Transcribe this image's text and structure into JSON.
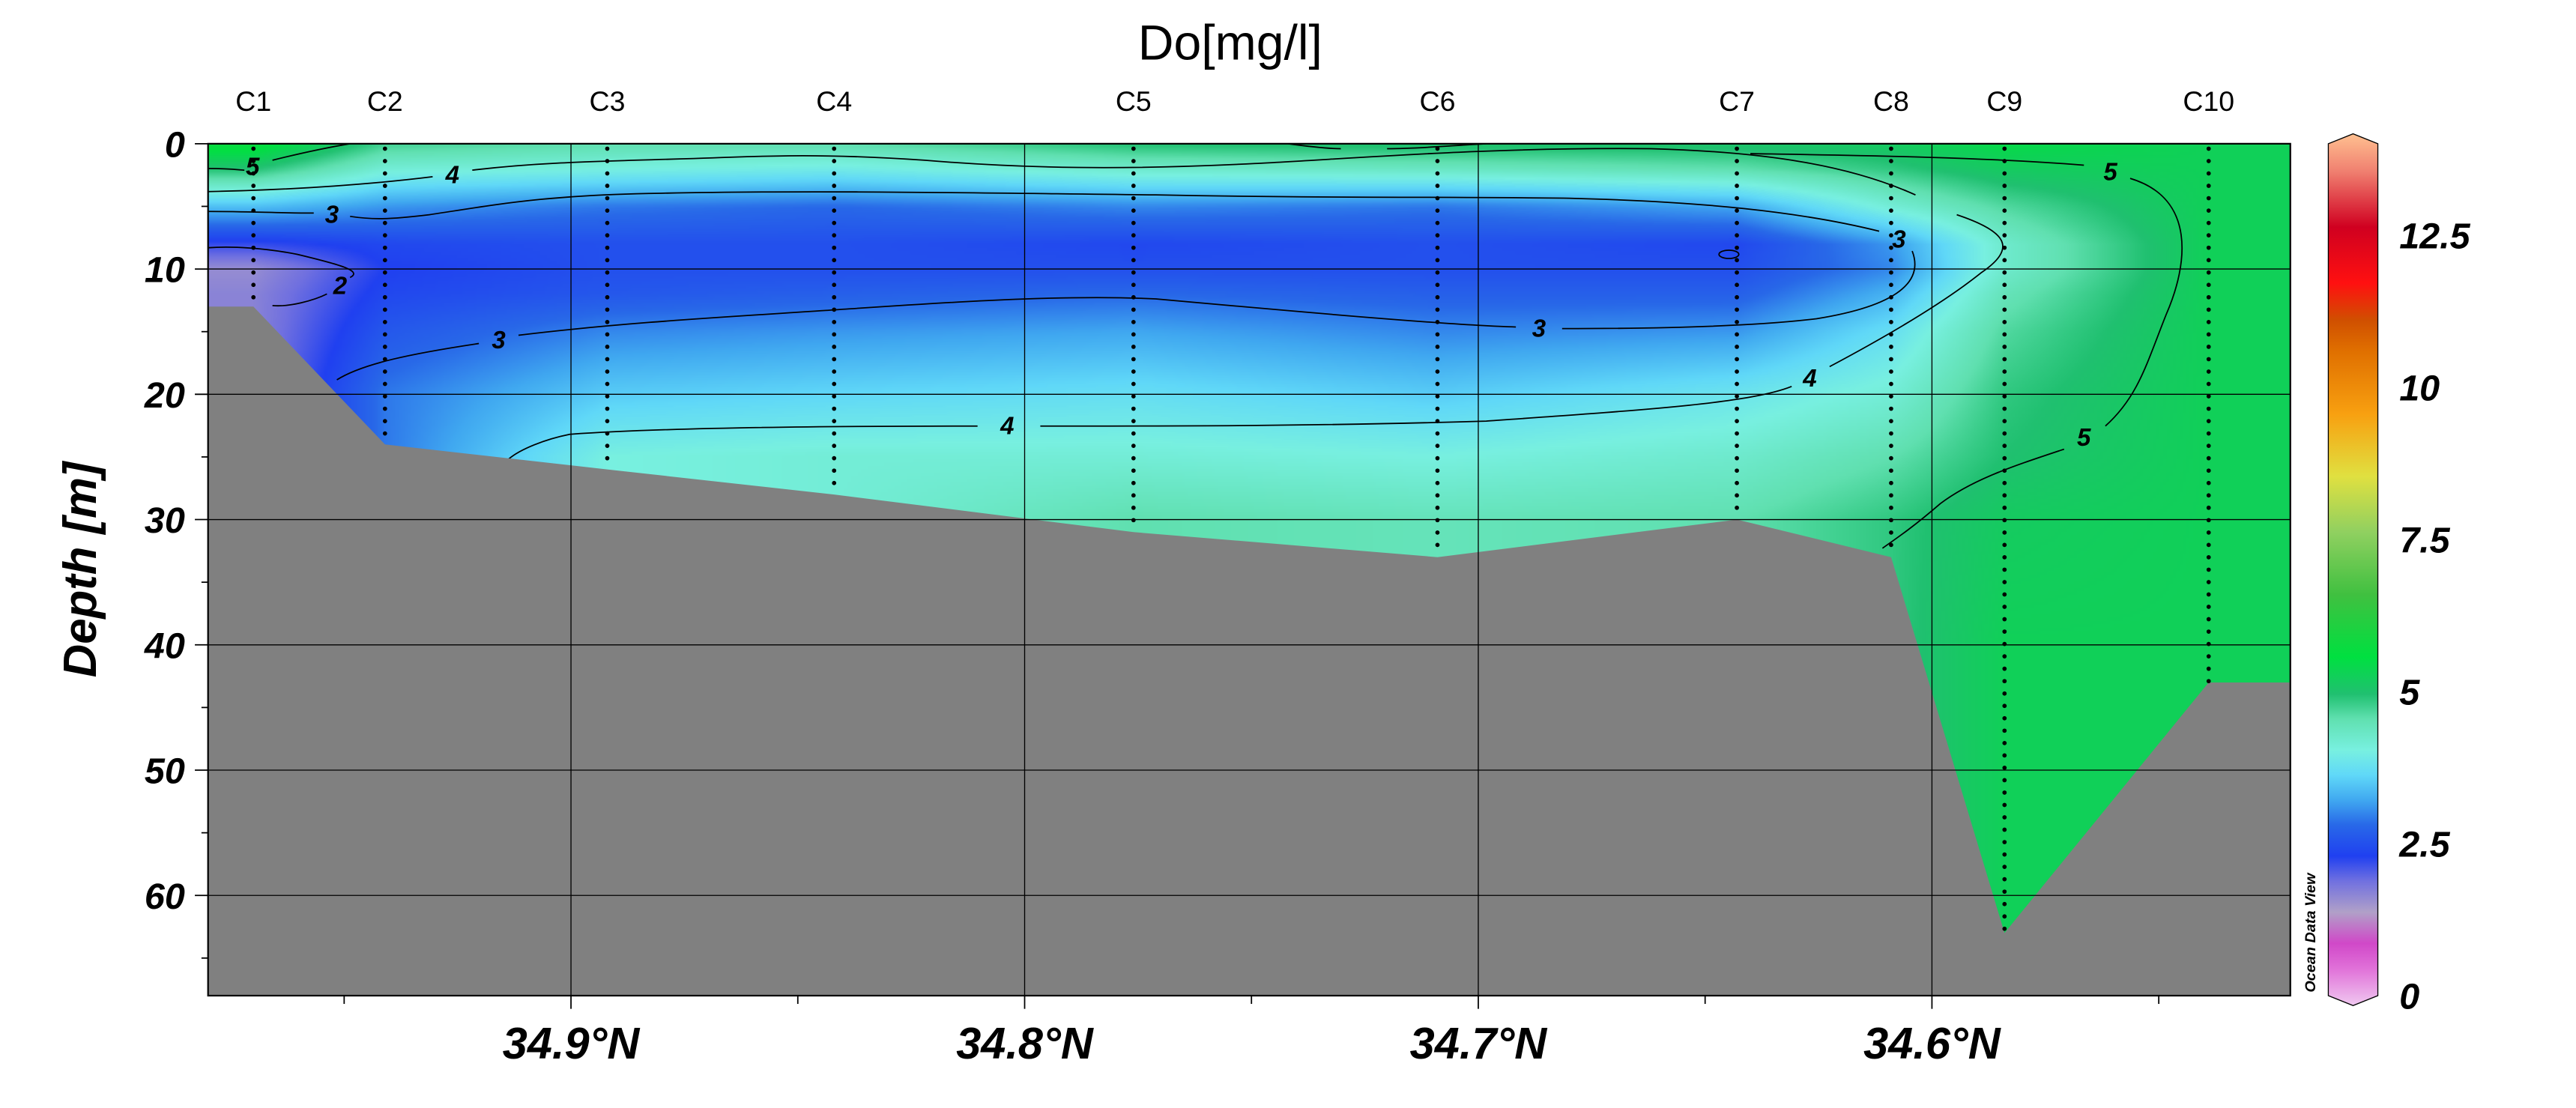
{
  "chart_data": {
    "type": "heatmap",
    "title": "Do[mg/l]",
    "xlabel": "",
    "ylabel": "Depth [m]",
    "xlim": [
      34.98,
      34.521
    ],
    "ylim": [
      0,
      68
    ],
    "x_ticks": [
      34.9,
      34.8,
      34.7,
      34.6
    ],
    "x_tick_labels": [
      "34.9°N",
      "34.8°N",
      "34.7°N",
      "34.6°N"
    ],
    "y_ticks": [
      0,
      10,
      20,
      30,
      40,
      50,
      60
    ],
    "y_tick_labels": [
      "0",
      "10",
      "20",
      "30",
      "40",
      "50",
      "60"
    ],
    "grid": true,
    "depths": [
      0,
      2,
      5,
      8,
      10,
      12,
      15,
      20,
      25,
      30,
      40,
      50,
      60
    ],
    "stations": [
      {
        "name": "C1",
        "lat": 34.97,
        "bottom": 13,
        "values": [
          5.8,
          5.0,
          3.5,
          2.3,
          1.7,
          1.8,
          null,
          null,
          null,
          null,
          null,
          null,
          null
        ]
      },
      {
        "name": "C2",
        "lat": 34.941,
        "bottom": 24,
        "values": [
          4.8,
          4.2,
          3.2,
          2.5,
          2.4,
          2.5,
          2.7,
          3.0,
          null,
          null,
          null,
          null,
          null
        ]
      },
      {
        "name": "C3",
        "lat": 34.892,
        "bottom": 26,
        "values": [
          4.6,
          4.1,
          3.0,
          2.6,
          2.6,
          2.7,
          3.1,
          3.6,
          4.1,
          null,
          null,
          null,
          null
        ]
      },
      {
        "name": "C4",
        "lat": 34.842,
        "bottom": 28,
        "values": [
          4.6,
          4.0,
          2.9,
          2.6,
          2.6,
          2.8,
          3.2,
          3.7,
          4.2,
          null,
          null,
          null,
          null
        ]
      },
      {
        "name": "C5",
        "lat": 34.776,
        "bottom": 31,
        "values": [
          5.0,
          4.3,
          3.1,
          2.5,
          2.6,
          2.9,
          3.3,
          3.8,
          4.2,
          4.6,
          null,
          null,
          null
        ]
      },
      {
        "name": "C6",
        "lat": 34.709,
        "bottom": 33,
        "values": [
          5.1,
          4.4,
          3.0,
          2.6,
          2.6,
          2.8,
          3.1,
          3.6,
          4.1,
          4.5,
          null,
          null,
          null
        ]
      },
      {
        "name": "C7",
        "lat": 34.643,
        "bottom": 30,
        "values": [
          5.1,
          4.6,
          3.3,
          2.5,
          2.6,
          2.8,
          3.2,
          3.9,
          4.3,
          4.6,
          null,
          null,
          null
        ]
      },
      {
        "name": "C8",
        "lat": 34.609,
        "bottom": 33,
        "values": [
          5.2,
          4.9,
          4.2,
          3.2,
          3.1,
          3.4,
          3.8,
          4.2,
          4.6,
          4.9,
          null,
          null,
          null
        ]
      },
      {
        "name": "C9",
        "lat": 34.584,
        "bottom": 63,
        "values": [
          5.5,
          5.2,
          4.7,
          4.3,
          4.3,
          4.5,
          4.7,
          4.9,
          5.0,
          5.2,
          5.3,
          5.3,
          5.3
        ]
      },
      {
        "name": "C10",
        "lat": 34.539,
        "bottom": 43,
        "values": [
          5.3,
          5.3,
          5.3,
          5.3,
          5.3,
          5.3,
          5.3,
          5.3,
          5.3,
          5.3,
          5.3,
          null,
          null
        ]
      }
    ],
    "bathymetry": {
      "left_edge_depth": 13,
      "right_edge_depth": 43,
      "color": "#808080"
    },
    "contour_labels": [
      "5",
      "4",
      "3",
      "2",
      "3",
      "3",
      "4",
      "4",
      "5",
      "5",
      "3"
    ],
    "colorbar": {
      "range": [
        0,
        14
      ],
      "ticks": [
        0,
        2.5,
        5,
        7.5,
        10,
        12.5
      ],
      "tick_labels": [
        "0",
        "2.5",
        "5",
        "7.5",
        "10",
        "12.5"
      ],
      "stops": [
        [
          0,
          "#f0c8f0"
        ],
        [
          0.6,
          "#e070d8"
        ],
        [
          1.0,
          "#d048c8"
        ],
        [
          1.5,
          "#b0a0c8"
        ],
        [
          2.0,
          "#7070e0"
        ],
        [
          2.4,
          "#2040f0"
        ],
        [
          2.9,
          "#2868e8"
        ],
        [
          3.3,
          "#40a8f0"
        ],
        [
          3.7,
          "#60d8f8"
        ],
        [
          4.1,
          "#78f0e0"
        ],
        [
          4.6,
          "#60e0b0"
        ],
        [
          5.0,
          "#20c070"
        ],
        [
          5.6,
          "#00e040"
        ],
        [
          6.6,
          "#40c040"
        ],
        [
          7.6,
          "#90d060"
        ],
        [
          8.5,
          "#e0e040"
        ],
        [
          9.5,
          "#f8a010"
        ],
        [
          10.5,
          "#e07000"
        ],
        [
          11.0,
          "#d05000"
        ],
        [
          11.6,
          "#ff1010"
        ],
        [
          12.5,
          "#d00020"
        ],
        [
          13.4,
          "#f08070"
        ],
        [
          14,
          "#ffc090"
        ]
      ]
    },
    "watermark": "Ocean Data View"
  }
}
